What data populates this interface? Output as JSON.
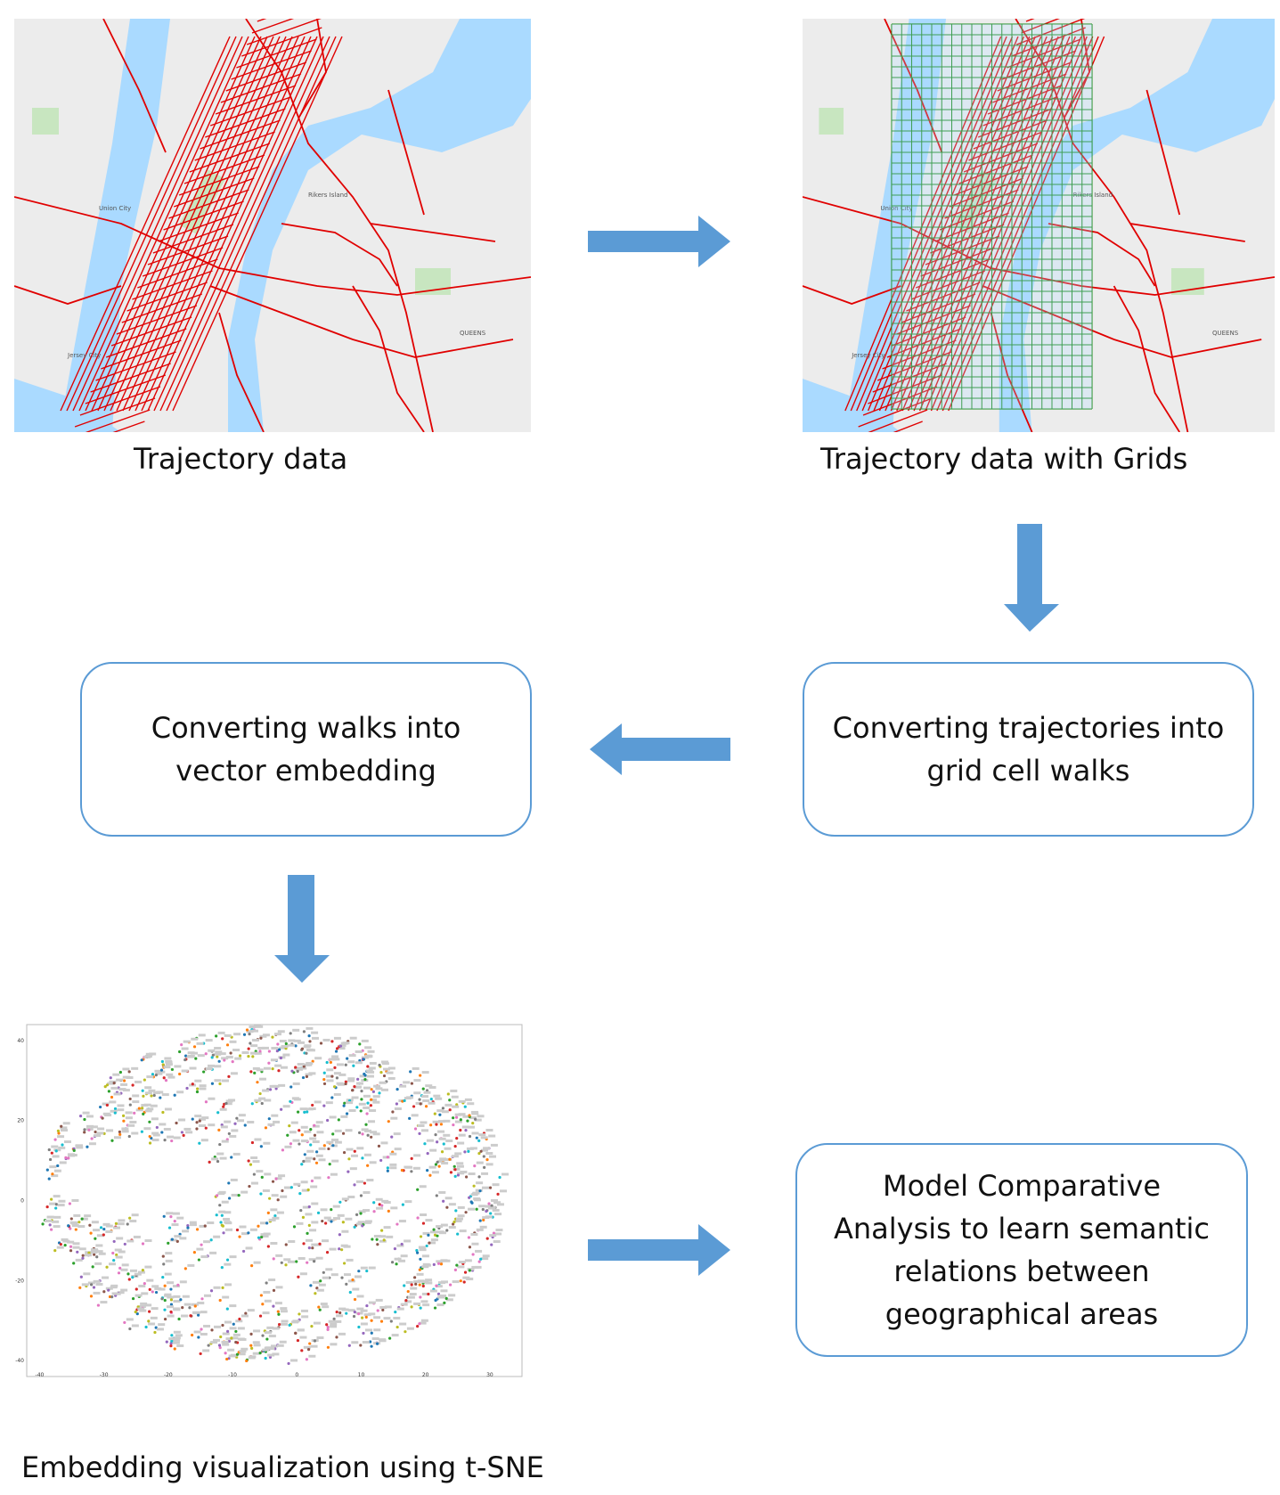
{
  "captions": {
    "trajectory": "Trajectory data",
    "trajectory_grids": "Trajectory data with Grids",
    "embedding_viz": "Embedding visualization using t-SNE"
  },
  "boxes": {
    "convert_walks": [
      "Converting walks into",
      "vector embedding"
    ],
    "convert_trajectories": [
      "Converting trajectories into",
      "grid cell walks"
    ],
    "model_analysis": [
      "Model Comparative",
      "Analysis to learn semantic",
      "relations between",
      "geographical areas"
    ]
  },
  "colors": {
    "arrow": "#5b9bd5",
    "box_border": "#5b9bd5",
    "water": "#aadaff",
    "land": "#ececec",
    "park": "#c8e6c0",
    "route": "#e00000",
    "grid": "#1a8a1a"
  },
  "map_labels": [
    "Union City",
    "Jersey City",
    "QUEENS",
    "Rikers Island"
  ],
  "chart_data": {
    "type": "scatter",
    "title": "",
    "xlabel": "",
    "ylabel": "",
    "xlim": [
      -42,
      35
    ],
    "ylim": [
      -44,
      44
    ],
    "xticks": [
      "-40",
      "-30",
      "-20",
      "-10",
      "0",
      "10",
      "20",
      "30"
    ],
    "yticks": [
      "40",
      "20",
      "0",
      "-20",
      "-40"
    ]
  }
}
